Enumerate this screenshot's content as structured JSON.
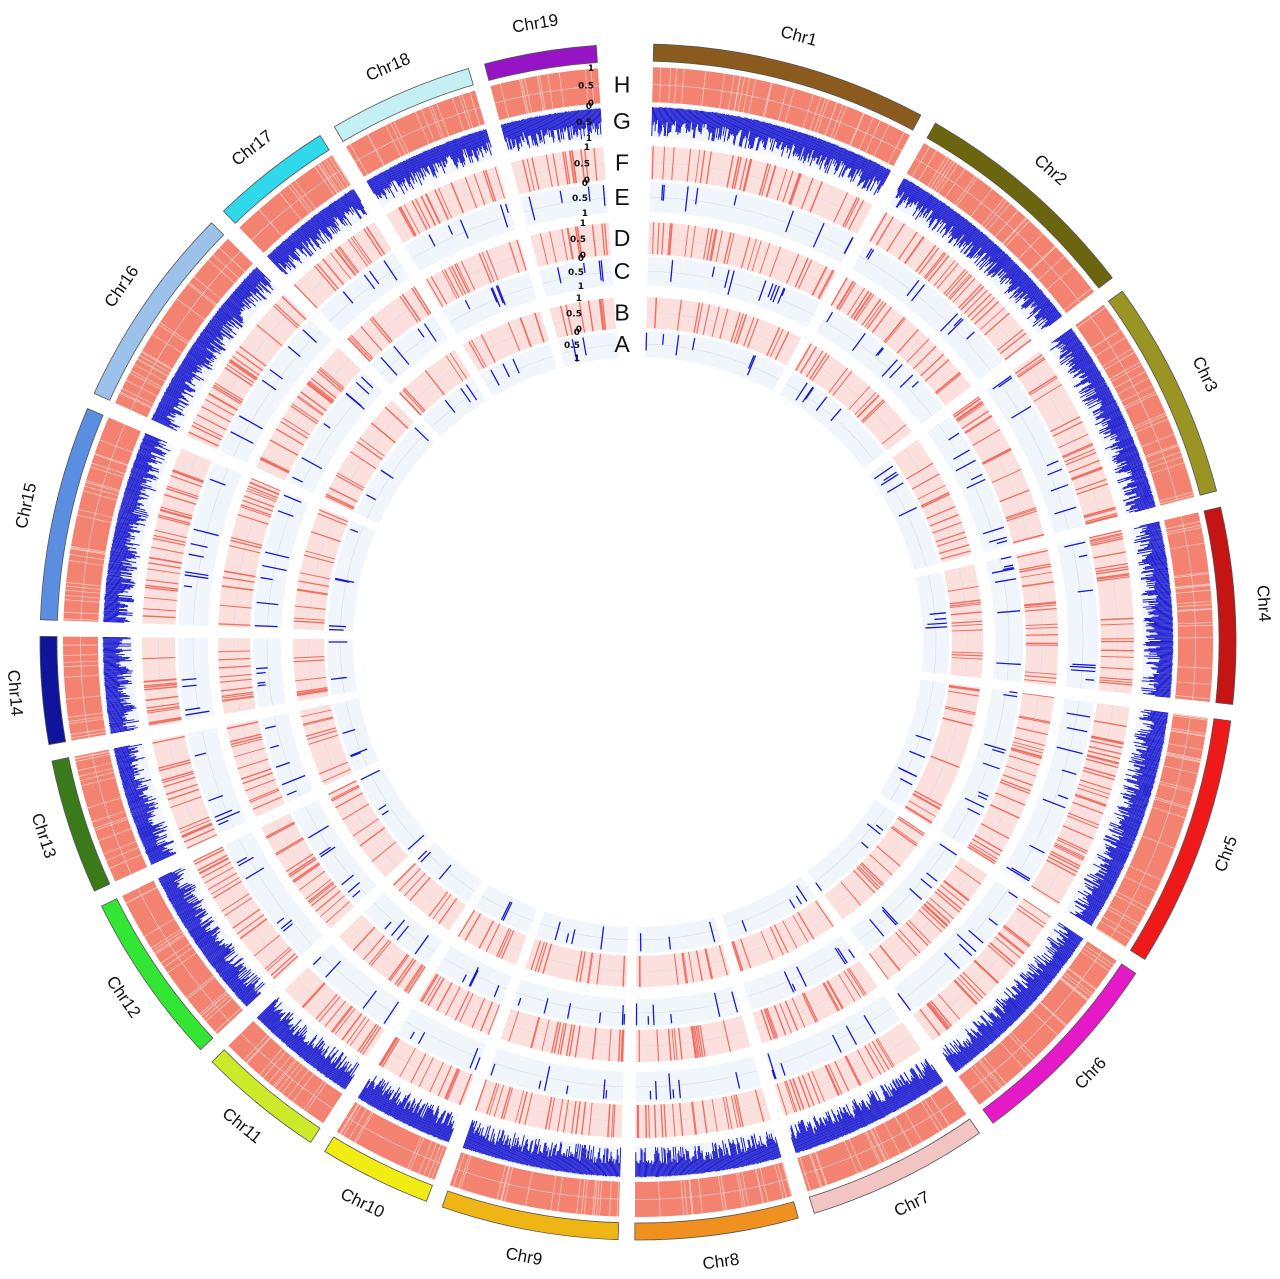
{
  "chart_data": {
    "type": "circos",
    "chromosomes": [
      {
        "name": "Chr1",
        "size": 59,
        "color": "#8B5A1E"
      },
      {
        "name": "Chr2",
        "size": 50,
        "color": "#6B6510"
      },
      {
        "name": "Chr3",
        "size": 47,
        "color": "#9A9424"
      },
      {
        "name": "Chr4",
        "size": 42,
        "color": "#C41414"
      },
      {
        "name": "Chr5",
        "size": 54,
        "color": "#EE1A1A"
      },
      {
        "name": "Chr6",
        "size": 44,
        "color": "#E619C8"
      },
      {
        "name": "Chr7",
        "size": 39,
        "color": "#F2C4C4"
      },
      {
        "name": "Chr8",
        "size": 35,
        "color": "#F0901E"
      },
      {
        "name": "Chr9",
        "size": 38,
        "color": "#EFB514"
      },
      {
        "name": "Chr10",
        "size": 24,
        "color": "#F0EC14"
      },
      {
        "name": "Chr11",
        "size": 27,
        "color": "#CDEA2A"
      },
      {
        "name": "Chr12",
        "size": 37,
        "color": "#33E633"
      },
      {
        "name": "Chr13",
        "size": 29,
        "color": "#3A7A1A"
      },
      {
        "name": "Chr14",
        "size": 23,
        "color": "#10149A"
      },
      {
        "name": "Chr15",
        "size": 46,
        "color": "#5A8EE0"
      },
      {
        "name": "Chr16",
        "size": 44,
        "color": "#9CC2EC"
      },
      {
        "name": "Chr17",
        "size": 26,
        "color": "#30D8EC"
      },
      {
        "name": "Chr18",
        "size": 31,
        "color": "#C4F0F4"
      },
      {
        "name": "Chr19",
        "size": 24,
        "color": "#9614C4"
      }
    ],
    "tracks": [
      {
        "label": "H",
        "kind": "heat",
        "color": "#F38270",
        "background": "#F38270",
        "density": 0.95
      },
      {
        "label": "G",
        "kind": "bar",
        "color": "#1A1ACF",
        "background": "#F0F6FC",
        "density": 0.95
      },
      {
        "label": "F",
        "kind": "heat",
        "color": "#EE7062",
        "background": "#FCE0DE",
        "density": 0.32
      },
      {
        "label": "E",
        "kind": "bar",
        "color": "#1A1ACF",
        "background": "#F0F6FC",
        "density": 0.13
      },
      {
        "label": "D",
        "kind": "heat",
        "color": "#EE7062",
        "background": "#FCE0DE",
        "density": 0.3
      },
      {
        "label": "C",
        "kind": "bar",
        "color": "#1A1ACF",
        "background": "#F0F6FC",
        "density": 0.16
      },
      {
        "label": "B",
        "kind": "heat",
        "color": "#EE7062",
        "background": "#FCE0DE",
        "density": 0.22
      },
      {
        "label": "A",
        "kind": "bar",
        "color": "#1A1ACF",
        "background": "#F0F6FC",
        "density": 0.12
      }
    ],
    "scale_ticks": [
      [
        "1",
        "0.5",
        "0"
      ],
      [
        "0",
        "0.5",
        "1"
      ],
      [
        "1",
        "0.5",
        "0"
      ],
      [
        "0",
        "0.5",
        "1"
      ],
      [
        "1",
        "0.5",
        "0"
      ],
      [
        "0",
        "0.5",
        "1"
      ],
      [
        "1",
        "0.5",
        "0"
      ],
      [
        "0",
        "0.5",
        "1"
      ]
    ]
  }
}
